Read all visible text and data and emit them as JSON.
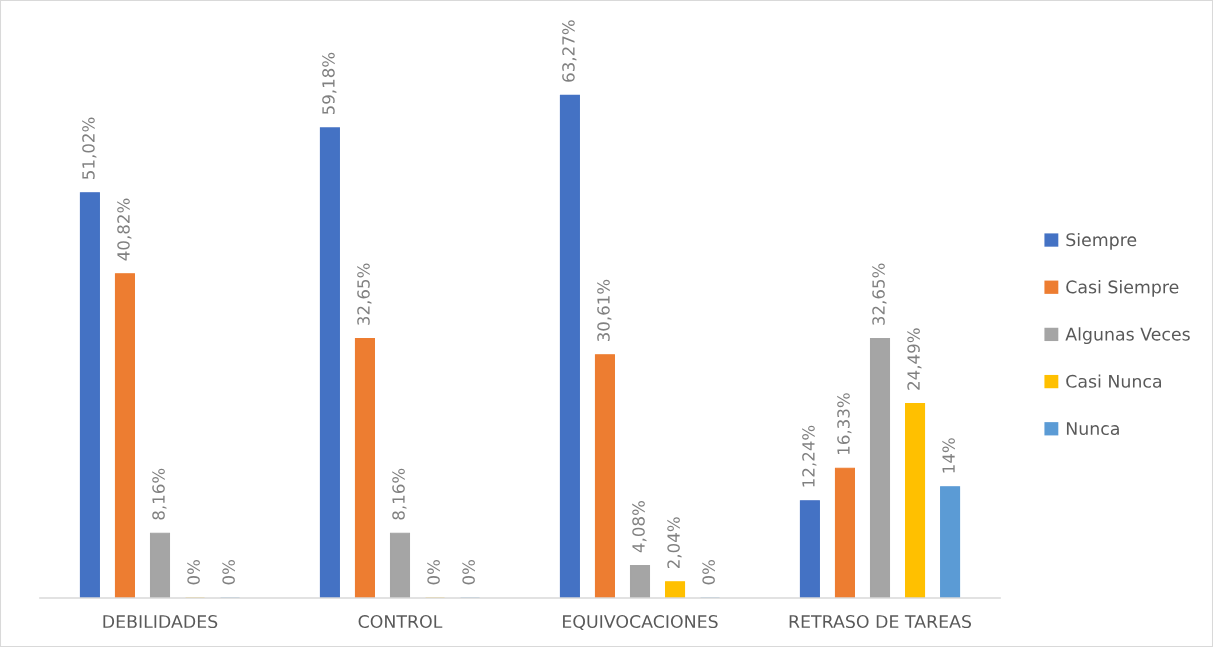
{
  "chart_data": {
    "type": "bar",
    "categories": [
      "DEBILIDADES",
      "CONTROL",
      "EQUIVOCACIONES",
      "RETRASO DE TAREAS"
    ],
    "series": [
      {
        "name": "Siempre",
        "color": "#4472c4",
        "values": [
          51.02,
          59.18,
          63.27,
          12.24
        ],
        "value_labels": [
          "51,02%",
          "59,18%",
          "63,27%",
          "12,24%"
        ]
      },
      {
        "name": "Casi Siempre",
        "color": "#ed7d31",
        "values": [
          40.82,
          32.65,
          30.61,
          16.33
        ],
        "value_labels": [
          "40,82%",
          "32,65%",
          "30,61%",
          "16,33%"
        ]
      },
      {
        "name": "Algunas Veces",
        "color": "#a5a5a5",
        "values": [
          8.16,
          8.16,
          4.08,
          32.65
        ],
        "value_labels": [
          "8,16%",
          "8,16%",
          "4,08%",
          "32,65%"
        ]
      },
      {
        "name": "Casi Nunca",
        "color": "#ffc000",
        "values": [
          0,
          0,
          2.04,
          24.49
        ],
        "value_labels": [
          "0%",
          "0%",
          "2,04%",
          "24,49%"
        ]
      },
      {
        "name": "Nunca",
        "color": "#5b9bd5",
        "values": [
          0,
          0,
          0,
          14
        ],
        "value_labels": [
          "0%",
          "0%",
          "0%",
          "14%"
        ]
      }
    ],
    "legend": "right",
    "tick_labels": "x"
  }
}
